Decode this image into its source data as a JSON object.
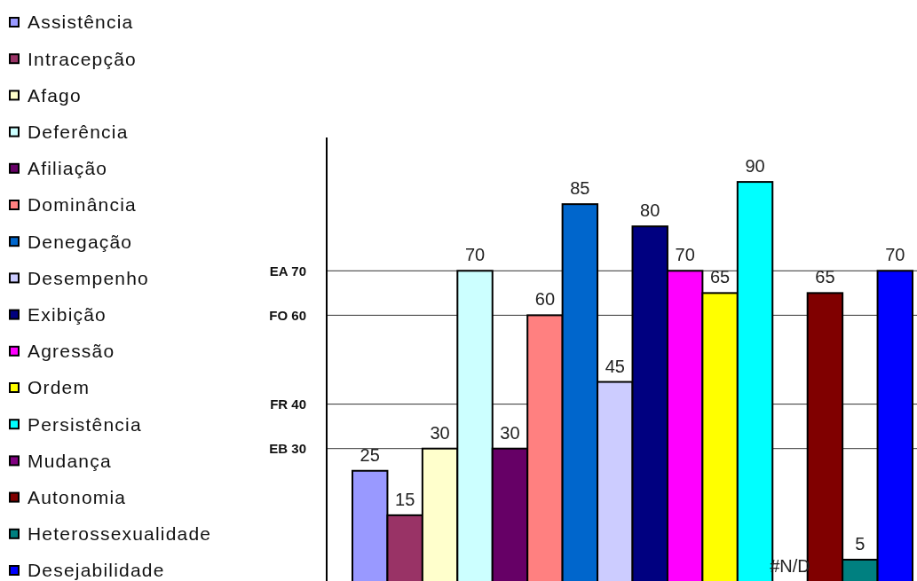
{
  "chart_data": {
    "type": "bar",
    "categories": [
      null
    ],
    "series": [
      {
        "name": "Assistência",
        "color": "#9999ff",
        "values": [
          25
        ]
      },
      {
        "name": "Intracepção",
        "color": "#993366",
        "values": [
          15
        ]
      },
      {
        "name": "Afago",
        "color": "#ffffcc",
        "values": [
          30
        ]
      },
      {
        "name": "Deferência",
        "color": "#ccffff",
        "values": [
          70
        ]
      },
      {
        "name": "Afiliação",
        "color": "#660066",
        "values": [
          30
        ]
      },
      {
        "name": "Dominância",
        "color": "#ff8080",
        "values": [
          60
        ]
      },
      {
        "name": "Denegação",
        "color": "#0066cc",
        "values": [
          85
        ]
      },
      {
        "name": "Desempenho",
        "color": "#ccccff",
        "values": [
          45
        ]
      },
      {
        "name": "Exibição",
        "color": "#000080",
        "values": [
          80
        ]
      },
      {
        "name": "Agressão",
        "color": "#ff00ff",
        "values": [
          70
        ]
      },
      {
        "name": "Ordem",
        "color": "#ffff00",
        "values": [
          65
        ]
      },
      {
        "name": "Persistência",
        "color": "#00ffff",
        "values": [
          90
        ]
      },
      {
        "name": "Mudança",
        "color": "#800080",
        "values": [
          null
        ],
        "value_labels": [
          "#N/D"
        ]
      },
      {
        "name": "Autonomia",
        "color": "#800000",
        "values": [
          65
        ]
      },
      {
        "name": "Heterossexualidade",
        "color": "#008080",
        "values": [
          5
        ]
      },
      {
        "name": "Desejabilidade",
        "color": "#0000ff",
        "values": [
          70
        ]
      }
    ],
    "ylim": [
      0,
      100
    ],
    "ref_lines": [
      {
        "axis": "y",
        "value": 70,
        "label": "EA 70"
      },
      {
        "axis": "y",
        "value": 60,
        "label": "FO 60"
      },
      {
        "axis": "y",
        "value": 40,
        "label": "FR 40"
      },
      {
        "axis": "y",
        "value": 30,
        "label": "EB 30"
      }
    ],
    "legend": "left",
    "data_labels": true
  }
}
